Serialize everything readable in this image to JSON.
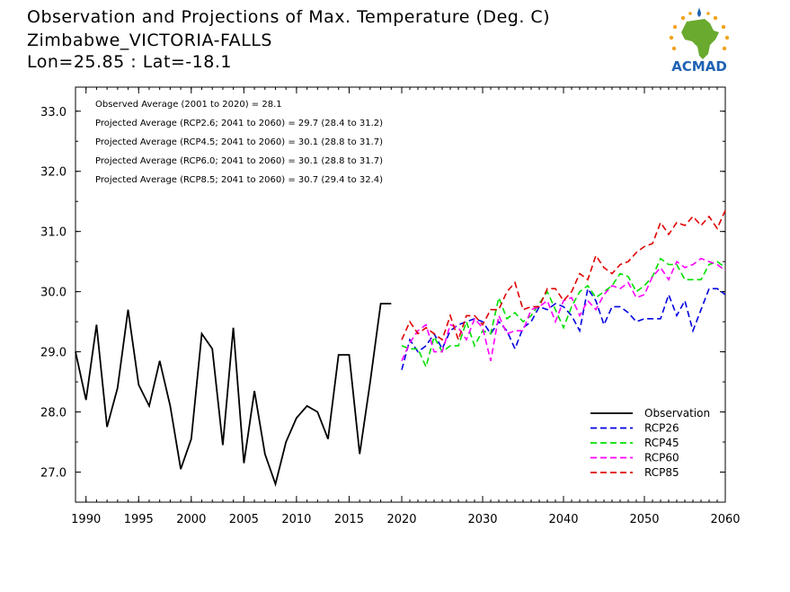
{
  "header": {
    "title": "Observation and Projections of Max. Temperature (Deg. C)",
    "location": "Zimbabwe_VICTORIA-FALLS",
    "coords": "Lon=25.85 : Lat=-18.1"
  },
  "logo": {
    "text": "ACMAD",
    "icon": "africa-map-logo",
    "colors": {
      "green": "#6aaa2e",
      "blue": "#1f63b4",
      "orange": "#f2a21b"
    }
  },
  "annotations": [
    "Observed Average (2001 to 2020) = 28.1",
    "Projected Average (RCP2.6; 2041 to 2060) = 29.7 (28.4 to 31.2)",
    "Projected Average (RCP4.5; 2041 to 2060) = 30.1 (28.8 to 31.7)",
    "Projected Average (RCP6.0; 2041 to 2060) = 30.1 (28.8 to 31.7)",
    "Projected Average (RCP8.5; 2041 to 2060) = 30.7 (29.4 to 32.4)"
  ],
  "chart_data": {
    "type": "line",
    "xlim": [
      1989,
      2060
    ],
    "ylim": [
      26.5,
      33.4
    ],
    "y_ticks": [
      27.0,
      28.0,
      29.0,
      30.0,
      31.0,
      32.0,
      33.0
    ],
    "y_tick_labels": [
      "27.0",
      "28.0",
      "29.0",
      "30.0",
      "31.0",
      "32.0",
      "33.0"
    ],
    "x_ticks_left": [
      1990,
      1995,
      2000,
      2005,
      2010,
      2015,
      2020
    ],
    "x_ticks_right": [
      2030,
      2040,
      2050,
      2060
    ],
    "x_tick_labels_left": [
      "1990",
      "1995",
      "2000",
      "2005",
      "2010",
      "2015",
      "2020"
    ],
    "x_tick_labels_right": [
      "2030",
      "2040",
      "2050",
      "2060"
    ],
    "legend_position": "bottom-right",
    "series": [
      {
        "name": "Observation",
        "color": "#000000",
        "dashed": false,
        "x": [
          1989,
          1990,
          1991,
          1992,
          1993,
          1994,
          1995,
          1996,
          1997,
          1998,
          1999,
          2000,
          2001,
          2002,
          2003,
          2004,
          2005,
          2006,
          2007,
          2008,
          2009,
          2010,
          2011,
          2012,
          2013,
          2014,
          2015,
          2016,
          2017,
          2018,
          2019
        ],
        "y": [
          29.0,
          28.2,
          29.45,
          27.75,
          28.4,
          29.7,
          28.45,
          28.1,
          28.85,
          28.1,
          27.05,
          27.55,
          29.3,
          29.05,
          27.45,
          29.4,
          27.15,
          28.35,
          27.3,
          26.8,
          27.5,
          27.9,
          28.1,
          28.0,
          27.55,
          28.95,
          28.95,
          27.3,
          28.5,
          29.8,
          29.8
        ]
      },
      {
        "name": "RCP26",
        "color": "#0000e0",
        "dashed": true,
        "x": [
          2020,
          2021,
          2022,
          2023,
          2024,
          2025,
          2026,
          2027,
          2028,
          2029,
          2030,
          2031,
          2032,
          2033,
          2034,
          2035,
          2036,
          2037,
          2038,
          2039,
          2040,
          2041,
          2042,
          2043,
          2044,
          2045,
          2046,
          2047,
          2048,
          2049,
          2050,
          2051,
          2052,
          2053,
          2054,
          2055,
          2056,
          2057,
          2058,
          2059,
          2060
        ],
        "y": [
          28.7,
          29.2,
          29.0,
          29.1,
          29.3,
          29.05,
          29.35,
          29.45,
          29.5,
          29.55,
          29.5,
          29.3,
          29.5,
          29.35,
          29.05,
          29.4,
          29.5,
          29.75,
          29.7,
          29.8,
          29.75,
          29.6,
          29.35,
          30.05,
          29.85,
          29.45,
          29.75,
          29.75,
          29.65,
          29.5,
          29.55,
          29.55,
          29.55,
          29.95,
          29.6,
          29.85,
          29.35,
          29.7,
          30.05,
          30.05,
          29.95
        ]
      },
      {
        "name": "RCP45",
        "color": "#00e000",
        "dashed": true,
        "x": [
          2020,
          2021,
          2022,
          2023,
          2024,
          2025,
          2026,
          2027,
          2028,
          2029,
          2030,
          2031,
          2032,
          2033,
          2034,
          2035,
          2036,
          2037,
          2038,
          2039,
          2040,
          2041,
          2042,
          2043,
          2044,
          2045,
          2046,
          2047,
          2048,
          2049,
          2050,
          2051,
          2052,
          2053,
          2054,
          2055,
          2056,
          2057,
          2058,
          2059,
          2060
        ],
        "y": [
          29.1,
          29.05,
          29.05,
          28.75,
          29.25,
          29.0,
          29.1,
          29.1,
          29.5,
          29.1,
          29.35,
          29.3,
          29.9,
          29.55,
          29.65,
          29.5,
          29.6,
          29.8,
          30.0,
          29.7,
          29.4,
          29.75,
          30.0,
          30.1,
          29.9,
          30.0,
          30.1,
          30.3,
          30.25,
          30.0,
          30.1,
          30.25,
          30.55,
          30.45,
          30.45,
          30.2,
          30.2,
          30.2,
          30.45,
          30.5,
          30.4
        ]
      },
      {
        "name": "RCP60",
        "color": "#ff00ff",
        "dashed": true,
        "x": [
          2020,
          2021,
          2022,
          2023,
          2024,
          2025,
          2026,
          2027,
          2028,
          2029,
          2030,
          2031,
          2032,
          2033,
          2034,
          2035,
          2036,
          2037,
          2038,
          2039,
          2040,
          2041,
          2042,
          2043,
          2044,
          2045,
          2046,
          2047,
          2048,
          2049,
          2050,
          2051,
          2052,
          2053,
          2054,
          2055,
          2056,
          2057,
          2058,
          2059,
          2060
        ],
        "y": [
          28.85,
          29.15,
          29.35,
          29.45,
          29.0,
          29.0,
          29.45,
          29.4,
          29.2,
          29.55,
          29.4,
          28.85,
          29.6,
          29.3,
          29.35,
          29.35,
          29.7,
          29.75,
          29.85,
          29.5,
          29.85,
          29.9,
          29.6,
          29.85,
          29.7,
          29.95,
          30.1,
          30.05,
          30.15,
          29.9,
          29.95,
          30.25,
          30.4,
          30.2,
          30.5,
          30.4,
          30.45,
          30.55,
          30.5,
          30.45,
          30.35
        ]
      },
      {
        "name": "RCP85",
        "color": "#e00000",
        "dashed": true,
        "x": [
          2020,
          2021,
          2022,
          2023,
          2024,
          2025,
          2026,
          2027,
          2028,
          2029,
          2030,
          2031,
          2032,
          2033,
          2034,
          2035,
          2036,
          2037,
          2038,
          2039,
          2040,
          2041,
          2042,
          2043,
          2044,
          2045,
          2046,
          2047,
          2048,
          2049,
          2050,
          2051,
          2052,
          2053,
          2054,
          2055,
          2056,
          2057,
          2058,
          2059,
          2060
        ],
        "y": [
          29.2,
          29.5,
          29.3,
          29.4,
          29.3,
          29.2,
          29.6,
          29.2,
          29.6,
          29.6,
          29.45,
          29.7,
          29.7,
          30.0,
          30.15,
          29.7,
          29.75,
          29.75,
          30.05,
          30.05,
          29.85,
          30.0,
          30.3,
          30.2,
          30.6,
          30.4,
          30.3,
          30.45,
          30.5,
          30.65,
          30.75,
          30.8,
          31.15,
          30.95,
          31.15,
          31.1,
          31.25,
          31.1,
          31.25,
          31.05,
          31.35
        ]
      }
    ]
  }
}
